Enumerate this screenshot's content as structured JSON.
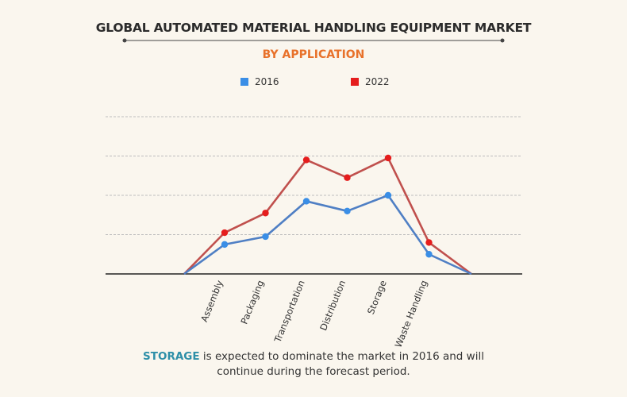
{
  "chart_data": {
    "type": "line",
    "title": "GLOBAL AUTOMATED MATERIAL HANDLING EQUIPMENT MARKET",
    "subtitle": "BY APPLICATION",
    "categories": [
      "Assembly",
      "Packaging",
      "Transportation",
      "Distribution",
      "Storage",
      "Waste Handling"
    ],
    "series": [
      {
        "name": "2016",
        "color": "#3a8ee6",
        "line_color": "#4f7fc4",
        "values": [
          1.5,
          1.9,
          3.7,
          3.2,
          4.0,
          1.0
        ]
      },
      {
        "name": "2022",
        "color": "#e51d1d",
        "line_color": "#c0504d",
        "values": [
          2.1,
          3.1,
          5.8,
          4.9,
          5.9,
          1.6
        ]
      }
    ],
    "ylim": [
      0,
      8
    ],
    "gridlines": [
      2,
      4,
      6,
      8
    ],
    "grid": true,
    "xlabel": "",
    "ylabel": "",
    "legend": "top-center"
  },
  "caption": {
    "highlight": "STORAGE",
    "line1": " is expected to dominate the market in 2016 and will",
    "line2": "continue during the forecast period."
  }
}
